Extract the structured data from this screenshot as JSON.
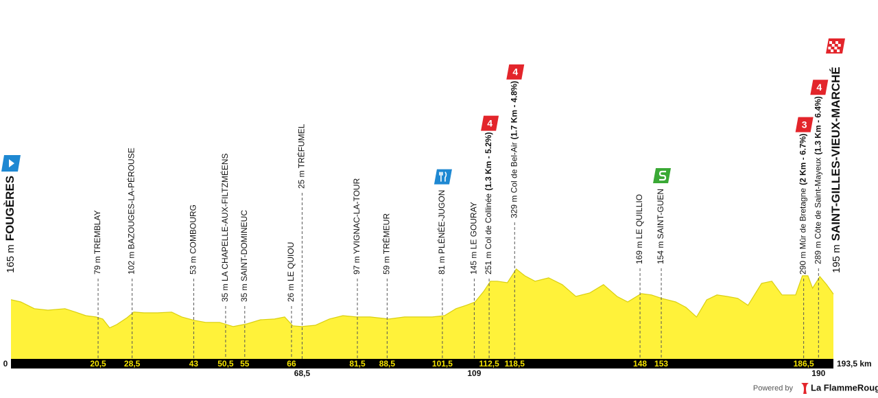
{
  "chart_data": {
    "type": "area",
    "color": "#fff23a",
    "xlim": [
      0,
      193.5
    ],
    "ylim": [
      -150,
      350
    ],
    "x": [
      0,
      2.3,
      5.5,
      8.7,
      12.7,
      15.2,
      17.6,
      20,
      21.6,
      23.2,
      24.9,
      27.3,
      28.9,
      31.3,
      34.5,
      37.8,
      40.2,
      43.1,
      45.8,
      49.1,
      52.3,
      55.5,
      58.7,
      62,
      64.4,
      66.3,
      68.4,
      71.6,
      74.9,
      78.1,
      81.3,
      84.5,
      88.9,
      92.6,
      95.9,
      99.1,
      102,
      104.7,
      107.1,
      109.2,
      111.2,
      112.8,
      114.4,
      116.8,
      118.9,
      120.9,
      123.3,
      126.5,
      129.7,
      132.9,
      136.2,
      139.4,
      142.6,
      145.1,
      148.3,
      150.7,
      153.1,
      156.4,
      158.8,
      161.3,
      163.7,
      166.1,
      168.5,
      171,
      173.4,
      176.6,
      179,
      181.4,
      184.6,
      186.2,
      187.5,
      188.6,
      190.3,
      191.9,
      193.5
    ],
    "values": [
      165,
      153,
      117,
      109,
      117,
      99,
      80,
      73,
      62,
      15,
      33,
      69,
      99,
      95,
      95,
      99,
      73,
      55,
      44,
      44,
      22,
      36,
      58,
      62,
      73,
      26,
      22,
      29,
      62,
      80,
      73,
      73,
      62,
      73,
      73,
      73,
      80,
      117,
      135,
      153,
      208,
      263,
      263,
      255,
      328,
      292,
      263,
      281,
      245,
      182,
      201,
      245,
      182,
      153,
      197,
      190,
      172,
      153,
      124,
      73,
      164,
      190,
      182,
      172,
      135,
      252,
      263,
      190,
      190,
      292,
      292,
      226,
      288,
      245,
      195
    ],
    "start": {
      "km": "0",
      "altitude": "165 m",
      "name": "FOUGÈRES"
    },
    "finish": {
      "km": "193,5 km",
      "altitude": "195 m",
      "name": "SAINT-GILLES-VIEUX-MARCHÉ"
    },
    "waypoints": [
      {
        "km": 20.5,
        "km_label": "20,5",
        "label": "79 m TREMBLAY"
      },
      {
        "km": 28.5,
        "km_label": "28,5",
        "label": "102 m BAZOUGES-LA-PÉROUSE"
      },
      {
        "km": 43,
        "km_label": "43",
        "label": "53 m COMBOURG"
      },
      {
        "km": 50.5,
        "km_label": "50,5",
        "label": "35 m LA CHAPELLE-AUX-FILTZMÉENS"
      },
      {
        "km": 55,
        "km_label": "55",
        "label": "35 m SAINT-DOMINEUC"
      },
      {
        "km": 66,
        "km_label": "66",
        "label": "26 m LE QUIOU"
      },
      {
        "km": 68.5,
        "km_label": "68,5",
        "label": "25 m TRÉFUMEL",
        "row": "below"
      },
      {
        "km": 81.5,
        "km_label": "81,5",
        "label": "97 m YVIGNAC-LA-TOUR"
      },
      {
        "km": 88.5,
        "km_label": "88,5",
        "label": "59 m TRÉMEUR"
      },
      {
        "km": 101.5,
        "km_label": "101,5",
        "label": "81 m PLÉNÉE-JUGON",
        "marker": "feed"
      },
      {
        "km": 109,
        "km_label": "109",
        "label": "145 m LE GOURAY",
        "row": "below"
      },
      {
        "km": 112.5,
        "km_label": "112,5",
        "label": "251 m Col de Collinée",
        "detail": "(1.3 Km - 5.2%)",
        "category": "4"
      },
      {
        "km": 118.5,
        "km_label": "118,5",
        "label": "329 m Col de Bel-Air",
        "detail": "(1.7 Km - 4.8%)",
        "category": "4"
      },
      {
        "km": 148,
        "km_label": "148",
        "label": "169 m LE QUILLIO"
      },
      {
        "km": 153,
        "km_label": "153",
        "label": "154 m SAINT-GUEN",
        "marker": "sprint"
      },
      {
        "km": 186.5,
        "km_label": "186,5",
        "label": "290 m Mûr de Bretagne",
        "detail": "(2 Km - 6.7%)",
        "category": "3"
      },
      {
        "km": 190,
        "km_label": "190",
        "label": "289 m Côte de Saint-Mayeux",
        "detail": "(1.3 Km - 6.4%)",
        "category": "4",
        "row": "below"
      }
    ],
    "footer": {
      "powered": "Powered by",
      "brand": "La FlammeRouge"
    }
  }
}
